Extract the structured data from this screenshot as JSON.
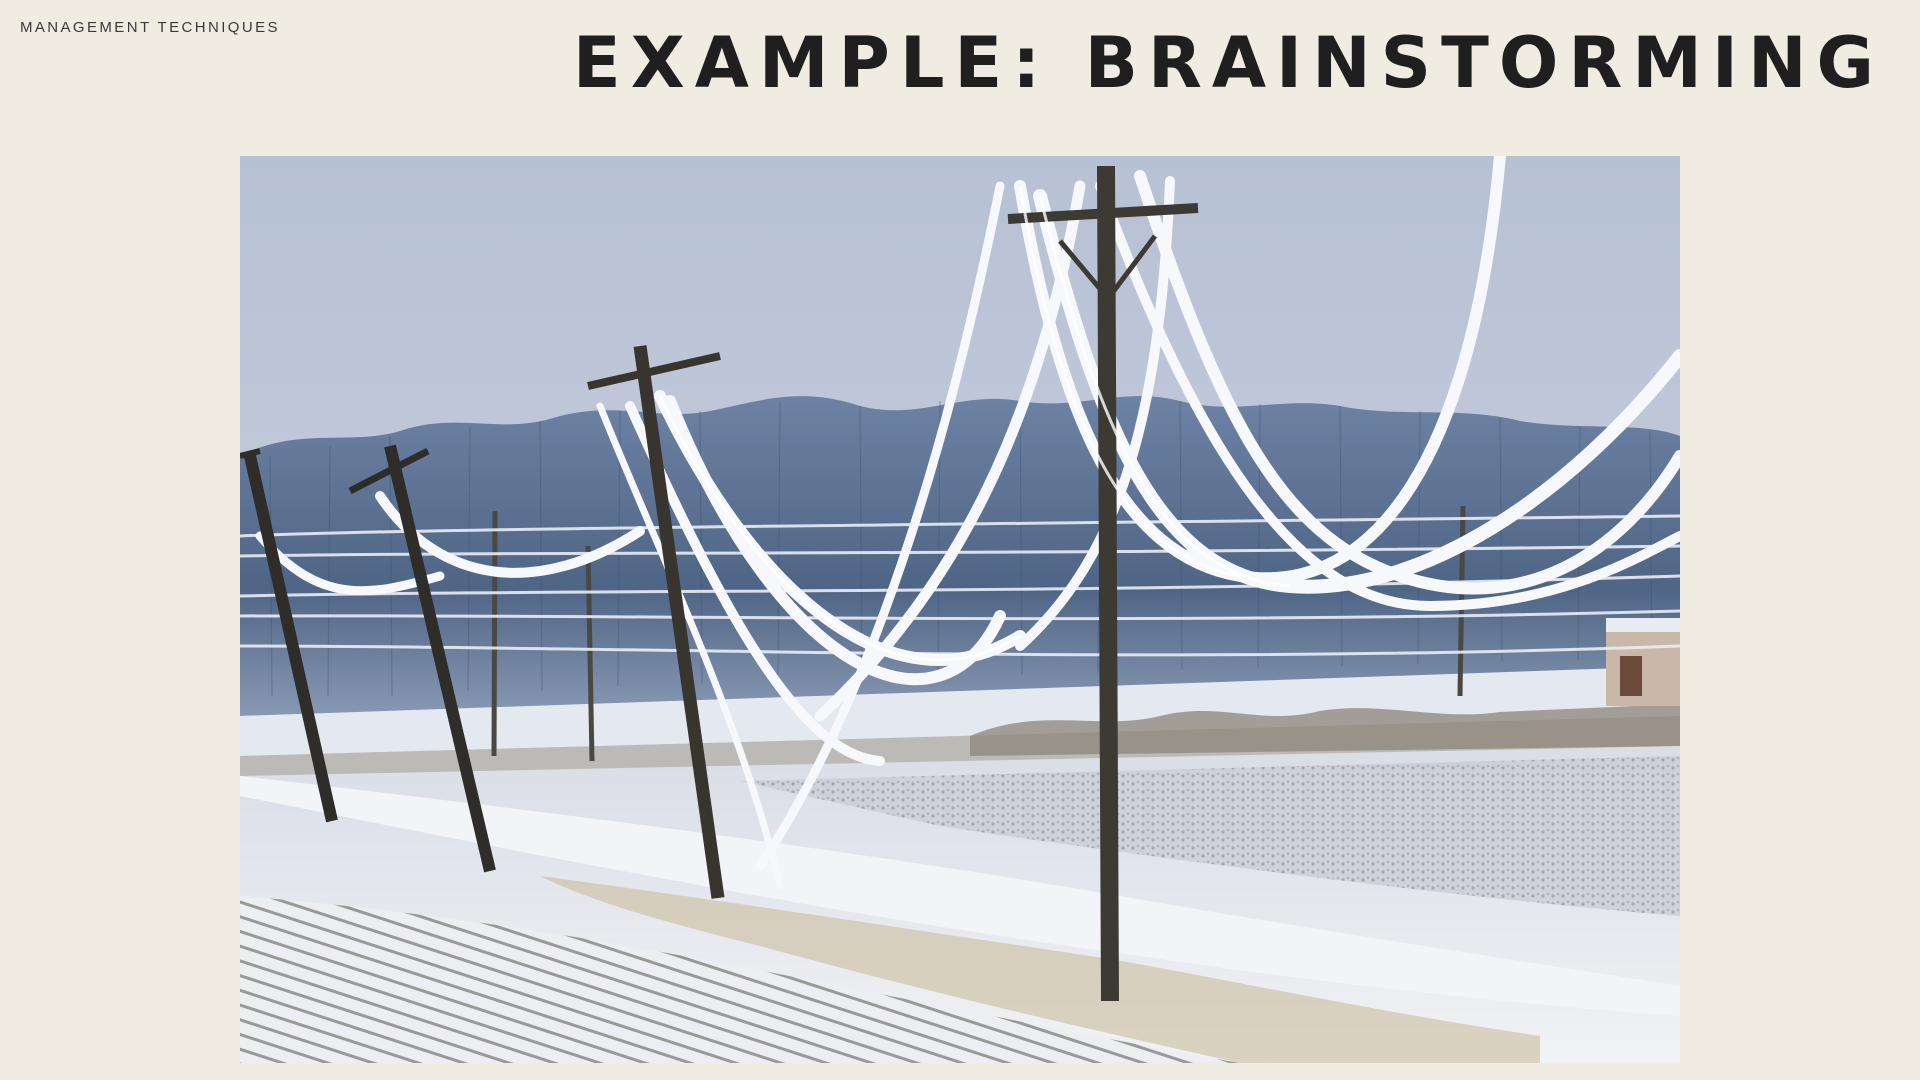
{
  "header": {
    "section_label": "MANAGEMENT TECHNIQUES",
    "title": "EXAMPLE:  BRAINSTORMING"
  },
  "photo": {
    "description_icon": "ice-covered-power-lines-photo",
    "colors": {
      "sky_top": "#b9c3d6",
      "sky_bottom": "#cdd4e2",
      "treeline": "#6f84a6",
      "snow": "#eef0f4",
      "pole": "#3b3934",
      "ice": "#f4f6fa"
    }
  }
}
